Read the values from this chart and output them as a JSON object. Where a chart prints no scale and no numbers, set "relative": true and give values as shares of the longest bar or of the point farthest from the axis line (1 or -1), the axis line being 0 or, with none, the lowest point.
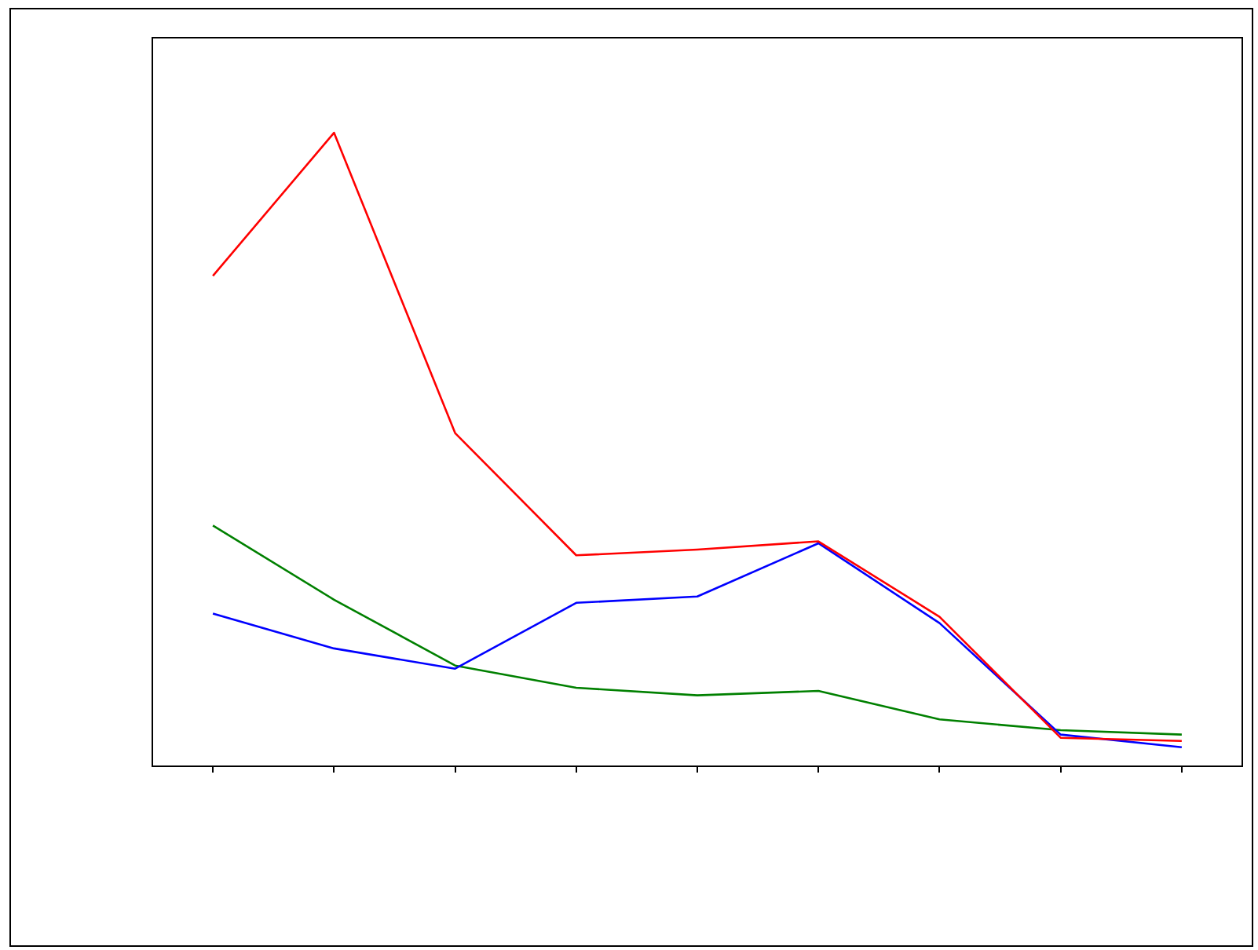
{
  "chart_data": {
    "type": "line",
    "relative": true,
    "categories": [
      null,
      null,
      null,
      null,
      null,
      null,
      null,
      null,
      null
    ],
    "series": [
      {
        "color": "#ff0000",
        "values": [
          0.774,
          1,
          0.526,
          0.333,
          0.342,
          0.355,
          0.236,
          0.045,
          0.04
        ]
      },
      {
        "color": "#0000ff",
        "values": [
          0.241,
          0.186,
          0.154,
          0.258,
          0.268,
          0.352,
          0.226,
          0.05,
          0.03
        ]
      },
      {
        "color": "#008000",
        "values": [
          0.38,
          0.263,
          0.159,
          0.124,
          0.112,
          0.119,
          0.074,
          0.057,
          0.05
        ]
      }
    ],
    "grid": false,
    "legend": false,
    "marker": "none",
    "line_style": "solid"
  }
}
